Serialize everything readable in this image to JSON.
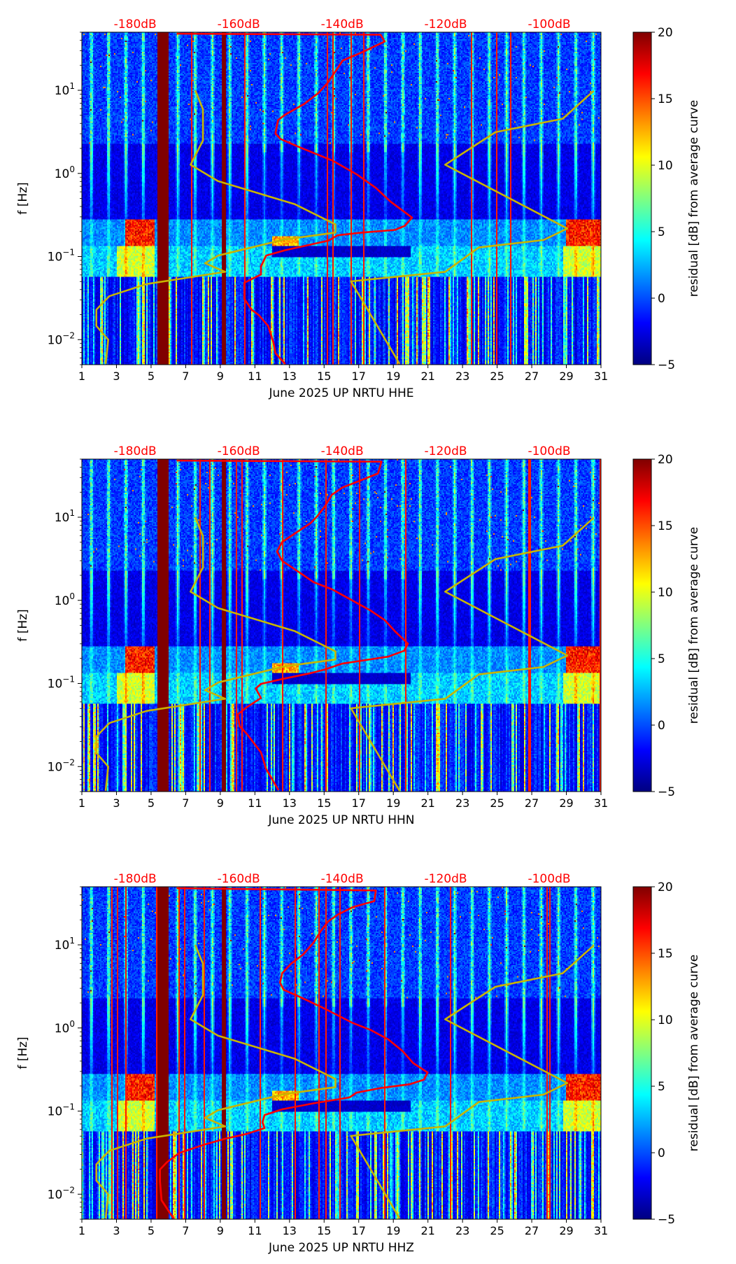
{
  "chart_data": [
    {
      "type": "heatmap",
      "xlabel": "June 2025 UP NRTU  HHE",
      "ylabel": "f [Hz]",
      "xticks": [
        "1",
        "3",
        "5",
        "7",
        "9",
        "11",
        "13",
        "15",
        "17",
        "19",
        "21",
        "23",
        "25",
        "27",
        "29",
        "31"
      ],
      "xlim_day": [
        1,
        31
      ],
      "ylim_hz": [
        0.005,
        50
      ],
      "yscale": "log",
      "yticks": [
        {
          "base": "10",
          "exp": "1",
          "value": 10
        },
        {
          "base": "10",
          "exp": "0",
          "value": 1
        },
        {
          "base": "10",
          "exp": "−1",
          "value": 0.1
        },
        {
          "base": "10",
          "exp": "−2",
          "value": 0.01
        }
      ],
      "top_axis": {
        "ticks": [
          "-180dB",
          "-160dB",
          "-140dB",
          "-120dB",
          "-100dB"
        ],
        "values_db": [
          -180,
          -160,
          -140,
          -120,
          -100
        ],
        "range_db": [
          -190.3,
          -90
        ],
        "color": "#ff0000"
      },
      "colorbar": {
        "label": "residual [dB] from average curve",
        "ticks": [
          "20",
          "15",
          "10",
          "5",
          "0",
          "−5"
        ],
        "values": [
          20,
          15,
          10,
          5,
          0,
          -5
        ],
        "range": [
          -5,
          20
        ],
        "colormap": "jet"
      },
      "data_gaps_days": [
        [
          5.4,
          6.0
        ],
        [
          9.1,
          9.3
        ]
      ],
      "red_curve_db_hz": [
        [
          -172,
          48
        ],
        [
          -132.6,
          46.6
        ],
        [
          -131.8,
          38.6
        ],
        [
          -136.2,
          28.6
        ],
        [
          -139.9,
          22.8
        ],
        [
          -141.3,
          16.9
        ],
        [
          -142.7,
          12.5
        ],
        [
          -144.6,
          9.27
        ],
        [
          -147.3,
          6.87
        ],
        [
          -151.0,
          5.09
        ],
        [
          -152.4,
          4.38
        ],
        [
          -152.9,
          3.01
        ],
        [
          -151.9,
          2.59
        ],
        [
          -148.3,
          2.07
        ],
        [
          -141.8,
          1.42
        ],
        [
          -137.2,
          0.975
        ],
        [
          -133.5,
          0.67
        ],
        [
          -130.7,
          0.46
        ],
        [
          -127.9,
          0.341
        ],
        [
          -126.5,
          0.294
        ],
        [
          -127.9,
          0.234
        ],
        [
          -129.8,
          0.209
        ],
        [
          -136.2,
          0.194
        ],
        [
          -140.9,
          0.18
        ],
        [
          -142.7,
          0.155
        ],
        [
          -151.0,
          0.119
        ],
        [
          -154.7,
          0.1026
        ],
        [
          -155.7,
          0.076
        ],
        [
          -155.7,
          0.0607
        ],
        [
          -158.9,
          0.0484
        ],
        [
          -158.9,
          0.0309
        ],
        [
          -157.5,
          0.0229
        ],
        [
          -156.1,
          0.0197
        ],
        [
          -154.3,
          0.0146
        ],
        [
          -153.3,
          0.0093
        ],
        [
          -152.9,
          0.00687
        ],
        [
          -151.0,
          0.0051
        ]
      ]
    },
    {
      "type": "heatmap",
      "xlabel": "June 2025 UP NRTU  HHN",
      "ylabel": "f [Hz]",
      "xticks": [
        "1",
        "3",
        "5",
        "7",
        "9",
        "11",
        "13",
        "15",
        "17",
        "19",
        "21",
        "23",
        "25",
        "27",
        "29",
        "31"
      ],
      "xlim_day": [
        1,
        31
      ],
      "ylim_hz": [
        0.005,
        50
      ],
      "yscale": "log",
      "yticks": [
        {
          "base": "10",
          "exp": "1",
          "value": 10
        },
        {
          "base": "10",
          "exp": "0",
          "value": 1
        },
        {
          "base": "10",
          "exp": "−1",
          "value": 0.1
        },
        {
          "base": "10",
          "exp": "−2",
          "value": 0.01
        }
      ],
      "top_axis": {
        "ticks": [
          "-180dB",
          "-160dB",
          "-140dB",
          "-120dB",
          "-100dB"
        ],
        "values_db": [
          -180,
          -160,
          -140,
          -120,
          -100
        ],
        "range_db": [
          -190.3,
          -90
        ],
        "color": "#ff0000"
      },
      "colorbar": {
        "label": "residual [dB] from average curve",
        "ticks": [
          "20",
          "15",
          "10",
          "5",
          "0",
          "−5"
        ],
        "values": [
          20,
          15,
          10,
          5,
          0,
          -5
        ],
        "range": [
          -5,
          20
        ],
        "colormap": "jet"
      },
      "data_gaps_days": [
        [
          5.4,
          6.0
        ],
        [
          9.1,
          9.3
        ]
      ],
      "red_curve_db_hz": [
        [
          -172,
          48
        ],
        [
          -132.4,
          46.6
        ],
        [
          -133.1,
          33.6
        ],
        [
          -136.5,
          27.6
        ],
        [
          -140.0,
          22.7
        ],
        [
          -142.0,
          18.6
        ],
        [
          -143.4,
          13.4
        ],
        [
          -144.8,
          10.3
        ],
        [
          -146.1,
          8.49
        ],
        [
          -148.9,
          6.53
        ],
        [
          -151.6,
          5.03
        ],
        [
          -152.6,
          3.87
        ],
        [
          -151.6,
          2.98
        ],
        [
          -150.2,
          2.61
        ],
        [
          -147.5,
          2.01
        ],
        [
          -145.5,
          1.65
        ],
        [
          -142.0,
          1.36
        ],
        [
          -138.6,
          1.04
        ],
        [
          -134.5,
          0.753
        ],
        [
          -131.8,
          0.579
        ],
        [
          -129.7,
          0.418
        ],
        [
          -127.3,
          0.301
        ],
        [
          -128.0,
          0.248
        ],
        [
          -131.1,
          0.21
        ],
        [
          -140.0,
          0.173
        ],
        [
          -143.4,
          0.147
        ],
        [
          -146.1,
          0.133
        ],
        [
          -151.6,
          0.113
        ],
        [
          -155.7,
          0.0989
        ],
        [
          -156.7,
          0.0869
        ],
        [
          -155.7,
          0.0668
        ],
        [
          -158.5,
          0.0514
        ],
        [
          -160.2,
          0.0423
        ],
        [
          -159.8,
          0.0305
        ],
        [
          -158.5,
          0.025
        ],
        [
          -157.1,
          0.0193
        ],
        [
          -155.7,
          0.0148
        ],
        [
          -154.7,
          0.00937
        ],
        [
          -152.3,
          0.0052
        ]
      ]
    },
    {
      "type": "heatmap",
      "xlabel": "June 2025 UP NRTU  HHZ",
      "ylabel": "f [Hz]",
      "xticks": [
        "1",
        "3",
        "5",
        "7",
        "9",
        "11",
        "13",
        "15",
        "17",
        "19",
        "21",
        "23",
        "25",
        "27",
        "29",
        "31"
      ],
      "xlim_day": [
        1,
        31
      ],
      "ylim_hz": [
        0.005,
        50
      ],
      "yscale": "log",
      "yticks": [
        {
          "base": "10",
          "exp": "1",
          "value": 10
        },
        {
          "base": "10",
          "exp": "0",
          "value": 1
        },
        {
          "base": "10",
          "exp": "−1",
          "value": 0.1
        },
        {
          "base": "10",
          "exp": "−2",
          "value": 0.01
        }
      ],
      "top_axis": {
        "ticks": [
          "-180dB",
          "-160dB",
          "-140dB",
          "-120dB",
          "-100dB"
        ],
        "values_db": [
          -180,
          -160,
          -140,
          -120,
          -100
        ],
        "range_db": [
          -190.3,
          -90
        ],
        "color": "#ff0000"
      },
      "colorbar": {
        "label": "residual [dB] from average curve",
        "ticks": [
          "20",
          "15",
          "10",
          "5",
          "0",
          "−5"
        ],
        "values": [
          20,
          15,
          10,
          5,
          0,
          -5
        ],
        "range": [
          -5,
          20
        ],
        "colormap": "jet"
      },
      "data_gaps_days": [
        [
          5.4,
          6.0
        ],
        [
          9.1,
          9.3
        ]
      ],
      "red_curve_db_hz": [
        [
          -172,
          48
        ],
        [
          -133.5,
          45.1
        ],
        [
          -133.8,
          33.6
        ],
        [
          -137.9,
          28.5
        ],
        [
          -140.7,
          23.4
        ],
        [
          -142.7,
          19.2
        ],
        [
          -144.1,
          14.8
        ],
        [
          -145.5,
          10.7
        ],
        [
          -147.5,
          7.69
        ],
        [
          -149.9,
          5.92
        ],
        [
          -151.6,
          4.56
        ],
        [
          -152.0,
          3.51
        ],
        [
          -151.3,
          2.88
        ],
        [
          -148.2,
          2.37
        ],
        [
          -143.4,
          1.71
        ],
        [
          -138.0,
          1.15
        ],
        [
          -134.5,
          0.946
        ],
        [
          -131.1,
          0.728
        ],
        [
          -128.3,
          0.525
        ],
        [
          -126.3,
          0.378
        ],
        [
          -123.5,
          0.291
        ],
        [
          -124.2,
          0.239
        ],
        [
          -127.0,
          0.21
        ],
        [
          -132.4,
          0.19
        ],
        [
          -137.2,
          0.167
        ],
        [
          -138.6,
          0.146
        ],
        [
          -145.5,
          0.124
        ],
        [
          -151.6,
          0.105
        ],
        [
          -155.0,
          0.0895
        ],
        [
          -155.4,
          0.0735
        ],
        [
          -155.0,
          0.0624
        ],
        [
          -158.5,
          0.053
        ],
        [
          -162.6,
          0.0465
        ],
        [
          -166.7,
          0.0394
        ],
        [
          -171.5,
          0.0313
        ],
        [
          -173.9,
          0.0241
        ],
        [
          -175.2,
          0.0198
        ],
        [
          -175.2,
          0.0143
        ],
        [
          -174.9,
          0.00846
        ],
        [
          -172.5,
          0.005
        ]
      ]
    }
  ],
  "reference_curves": {
    "color": "#c8b400",
    "low_noise_model_db_hz": [
      [
        -168.4,
        10
      ],
      [
        -166.9,
        5.92
      ],
      [
        -166.9,
        2.49
      ],
      [
        -169.3,
        1.27
      ],
      [
        -164.0,
        0.807
      ],
      [
        -149.2,
        0.427
      ],
      [
        -141.3,
        0.243
      ],
      [
        -141.3,
        0.194
      ],
      [
        -151.0,
        0.161
      ],
      [
        -164.0,
        0.1026
      ],
      [
        -166.5,
        0.0831
      ],
      [
        -162.6,
        0.0654
      ],
      [
        -177.8,
        0.0467
      ],
      [
        -185.0,
        0.0333
      ],
      [
        -187.5,
        0.0229
      ],
      [
        -187.5,
        0.0146
      ],
      [
        -185.2,
        0.01
      ],
      [
        -185.7,
        0.0051
      ]
    ],
    "high_noise_model_db_hz": [
      [
        -128.9,
        0.0051
      ],
      [
        -138.3,
        0.0502
      ],
      [
        -120.1,
        0.0654
      ],
      [
        -113.6,
        0.1285
      ],
      [
        -101.1,
        0.158
      ],
      [
        -96.5,
        0.217
      ],
      [
        -120.1,
        1.27
      ],
      [
        -110.4,
        3.13
      ],
      [
        -97.4,
        4.55
      ],
      [
        -91.4,
        9.85
      ]
    ]
  }
}
